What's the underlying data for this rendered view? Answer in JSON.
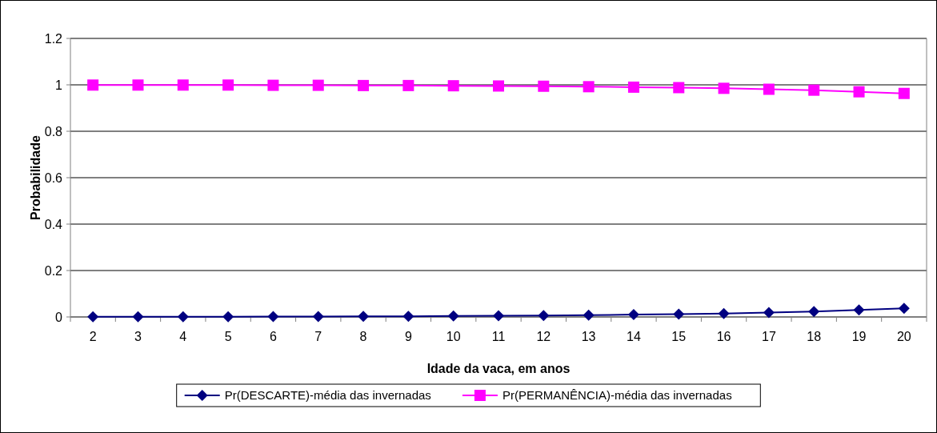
{
  "chart_data": {
    "type": "line",
    "xlabel": "Idade da vaca,  em anos",
    "ylabel": "Probabilidade",
    "categories": [
      "2",
      "3",
      "4",
      "5",
      "6",
      "7",
      "8",
      "9",
      "10",
      "11",
      "12",
      "13",
      "14",
      "15",
      "16",
      "17",
      "18",
      "19",
      "20"
    ],
    "series": [
      {
        "name": "Pr(DESCARTE)-média das invernadas",
        "color": "#000080",
        "marker": "diamond",
        "values": [
          0.001,
          0.001,
          0.001,
          0.001,
          0.002,
          0.002,
          0.003,
          0.003,
          0.004,
          0.005,
          0.006,
          0.008,
          0.01,
          0.012,
          0.015,
          0.019,
          0.023,
          0.03,
          0.037
        ]
      },
      {
        "name": "Pr(PERMANÊNCIA)-média das invernadas",
        "color": "#ff00ff",
        "marker": "square",
        "values": [
          0.999,
          0.999,
          0.999,
          0.999,
          0.998,
          0.998,
          0.997,
          0.997,
          0.996,
          0.995,
          0.994,
          0.992,
          0.99,
          0.988,
          0.985,
          0.981,
          0.977,
          0.97,
          0.963
        ]
      }
    ],
    "ylim": [
      0,
      1.2
    ],
    "yticks": [
      0,
      0.2,
      0.4,
      0.6,
      0.8,
      1,
      1.2
    ],
    "grid": "y",
    "legend": "bottom"
  }
}
